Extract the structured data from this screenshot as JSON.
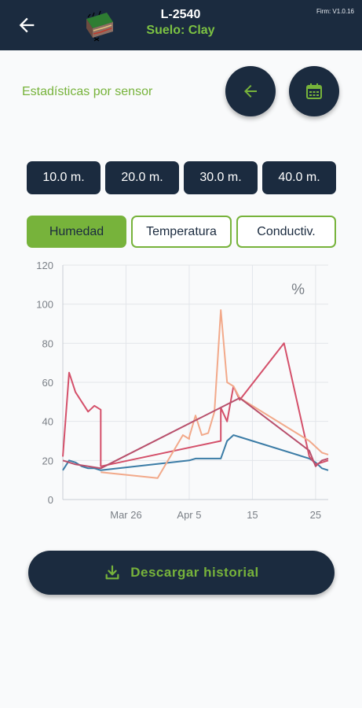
{
  "header": {
    "title": "L-2540",
    "subtitle": "Suelo: Clay",
    "firmware": "Firm: V1.0.16",
    "icons": {
      "back": "arrow-left-icon",
      "logo": "soil-logo-icon"
    }
  },
  "stats": {
    "label": "Estadísticas por sensor",
    "icons": {
      "back": "arrow-left-icon",
      "calendar": "calendar-icon"
    }
  },
  "depths": [
    "10.0 m.",
    "20.0 m.",
    "30.0 m.",
    "40.0 m."
  ],
  "tabs": [
    {
      "label": "Humedad",
      "active": true
    },
    {
      "label": "Temperatura",
      "active": false
    },
    {
      "label": "Conductiv.",
      "active": false
    }
  ],
  "download": {
    "label": "Descargar historial",
    "icon": "download-icon"
  },
  "colors": {
    "primary": "#1b2b3f",
    "accent": "#77b33b",
    "series_blue": "#3b7ca6",
    "series_red": "#d4506a",
    "series_peach": "#f2a98a",
    "series_rose": "#b8506c"
  },
  "chart_data": {
    "type": "line",
    "unit_label": "%",
    "ylim": [
      0,
      120
    ],
    "y_ticks": [
      0,
      20,
      40,
      60,
      80,
      100,
      120
    ],
    "x_range": [
      "2021-03-16",
      "2021-04-27"
    ],
    "x_ticks": [
      {
        "date": "2021-03-26",
        "label": "Mar 26"
      },
      {
        "date": "2021-04-05",
        "label": "Apr 5"
      },
      {
        "date": "2021-04-15",
        "label": "15"
      },
      {
        "date": "2021-04-25",
        "label": "25"
      }
    ],
    "grid": true,
    "series": [
      {
        "color": "#3b7ca6",
        "points": [
          [
            "2021-03-16",
            15
          ],
          [
            "2021-03-17",
            20
          ],
          [
            "2021-03-18",
            19
          ],
          [
            "2021-03-19",
            17
          ],
          [
            "2021-03-20",
            16
          ],
          [
            "2021-03-21",
            16
          ],
          [
            "2021-03-22",
            15
          ],
          [
            "2021-04-05",
            20
          ],
          [
            "2021-04-06",
            21
          ],
          [
            "2021-04-07",
            21
          ],
          [
            "2021-04-08",
            21
          ],
          [
            "2021-04-09",
            21
          ],
          [
            "2021-04-10",
            21
          ],
          [
            "2021-04-11",
            30
          ],
          [
            "2021-04-12",
            33
          ],
          [
            "2021-04-13",
            32
          ],
          [
            "2021-04-14",
            31
          ],
          [
            "2021-04-24",
            21
          ],
          [
            "2021-04-25",
            19
          ],
          [
            "2021-04-26",
            16
          ],
          [
            "2021-04-27",
            15
          ]
        ]
      },
      {
        "color": "#d4506a",
        "points": [
          [
            "2021-03-16",
            22
          ],
          [
            "2021-03-17",
            65
          ],
          [
            "2021-03-18",
            55
          ],
          [
            "2021-03-19",
            50
          ],
          [
            "2021-03-20",
            45
          ],
          [
            "2021-03-21",
            48
          ],
          [
            "2021-03-22",
            46
          ],
          [
            "2021-03-22",
            17
          ],
          [
            "2021-04-10",
            30
          ],
          [
            "2021-04-10",
            47
          ],
          [
            "2021-04-11",
            40
          ],
          [
            "2021-04-12",
            58
          ],
          [
            "2021-04-13",
            51
          ],
          [
            "2021-04-20",
            80
          ],
          [
            "2021-04-24",
            22
          ],
          [
            "2021-04-25",
            18
          ],
          [
            "2021-04-26",
            19
          ],
          [
            "2021-04-27",
            20
          ]
        ]
      },
      {
        "color": "#f2a98a",
        "points": [
          [
            "2021-03-22",
            14
          ],
          [
            "2021-03-25",
            13
          ],
          [
            "2021-03-28",
            12
          ],
          [
            "2021-03-31",
            11
          ],
          [
            "2021-04-04",
            33
          ],
          [
            "2021-04-05",
            31
          ],
          [
            "2021-04-05",
            32
          ],
          [
            "2021-04-06",
            43
          ],
          [
            "2021-04-07",
            33
          ],
          [
            "2021-04-08",
            34
          ],
          [
            "2021-04-09",
            45
          ],
          [
            "2021-04-10",
            97
          ],
          [
            "2021-04-11",
            60
          ],
          [
            "2021-04-12",
            58
          ],
          [
            "2021-04-13",
            52
          ],
          [
            "2021-04-24",
            30
          ],
          [
            "2021-04-25",
            27
          ],
          [
            "2021-04-26",
            24
          ],
          [
            "2021-04-27",
            23
          ]
        ]
      },
      {
        "color": "#b8506c",
        "points": [
          [
            "2021-03-16",
            20
          ],
          [
            "2021-03-18",
            18
          ],
          [
            "2021-03-20",
            17
          ],
          [
            "2021-03-22",
            16
          ],
          [
            "2021-04-13",
            52
          ],
          [
            "2021-04-24",
            25
          ],
          [
            "2021-04-25",
            17
          ],
          [
            "2021-04-26",
            20
          ],
          [
            "2021-04-27",
            21
          ]
        ]
      }
    ]
  }
}
